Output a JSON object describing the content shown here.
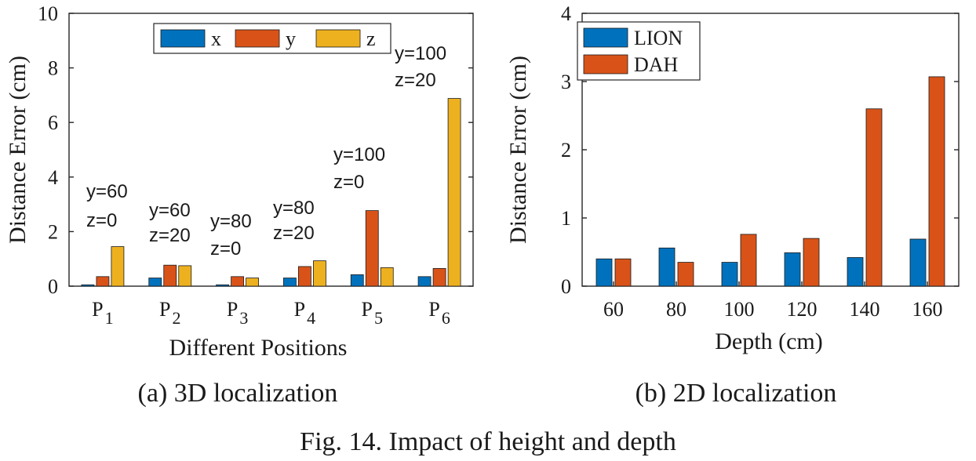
{
  "chart_data": [
    {
      "type": "bar",
      "ylabel": "Distance Error (cm)",
      "xlabel": "Different Positions",
      "ylim": [
        0,
        10
      ],
      "yticks": [
        "0",
        "2",
        "4",
        "6",
        "8",
        "10"
      ],
      "categories": [
        {
          "main": "P",
          "sub": "1"
        },
        {
          "main": "P",
          "sub": "2"
        },
        {
          "main": "P",
          "sub": "3"
        },
        {
          "main": "P",
          "sub": "4"
        },
        {
          "main": "P",
          "sub": "5"
        },
        {
          "main": "P",
          "sub": "6"
        }
      ],
      "series": [
        {
          "name": "x",
          "color": "#0072BD",
          "values": [
            0.05,
            0.3,
            0.05,
            0.3,
            0.42,
            0.35
          ]
        },
        {
          "name": "y",
          "color": "#D95319",
          "values": [
            0.35,
            0.77,
            0.35,
            0.72,
            2.77,
            0.65
          ]
        },
        {
          "name": "z",
          "color": "#EDB120",
          "values": [
            1.45,
            0.75,
            0.3,
            0.93,
            0.68,
            6.88
          ]
        }
      ],
      "annotations": [
        {
          "line1": "y=60",
          "line2": "z=0"
        },
        {
          "line1": "y=60",
          "line2": "z=20"
        },
        {
          "line1": "y=80",
          "line2": "z=0"
        },
        {
          "line1": "y=80",
          "line2": "z=20"
        },
        {
          "line1": "y=100",
          "line2": "z=0"
        },
        {
          "line1": "y=100",
          "line2": "z=20"
        }
      ],
      "legend_position": "top",
      "subtitle": "(a) 3D localization"
    },
    {
      "type": "bar",
      "ylabel": "Distance Error (cm)",
      "xlabel": "Depth (cm)",
      "ylim": [
        0,
        4
      ],
      "yticks": [
        "0",
        "1",
        "2",
        "3",
        "4"
      ],
      "categories": [
        "60",
        "80",
        "100",
        "120",
        "140",
        "160"
      ],
      "series": [
        {
          "name": "LION",
          "color": "#0072BD",
          "values": [
            0.4,
            0.56,
            0.35,
            0.49,
            0.42,
            0.69
          ]
        },
        {
          "name": "DAH",
          "color": "#D95319",
          "values": [
            0.4,
            0.35,
            0.76,
            0.7,
            2.6,
            3.07
          ]
        }
      ],
      "legend_position": "top-left",
      "subtitle": "(b) 2D localization"
    }
  ],
  "caption": "Fig. 14.  Impact of height and depth"
}
